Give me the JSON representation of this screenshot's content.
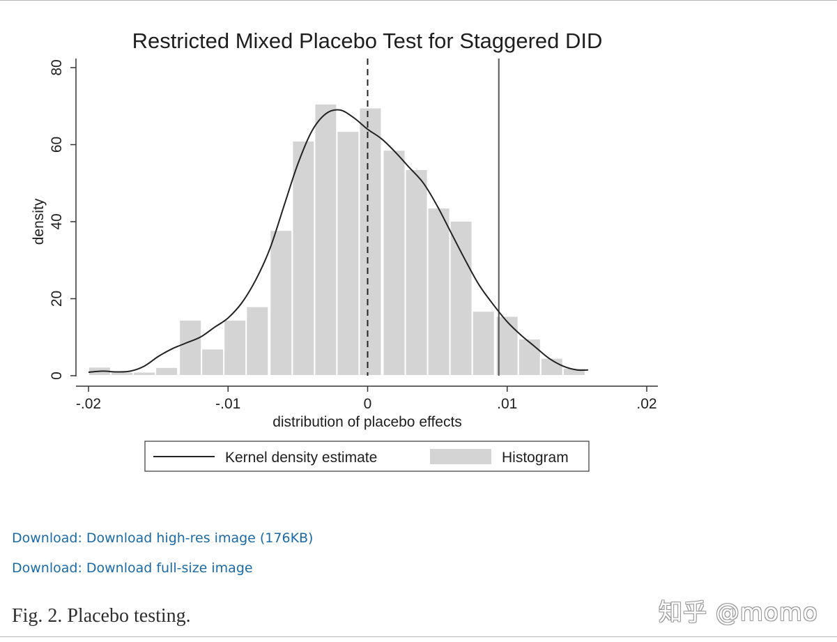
{
  "chart_data": {
    "type": "bar",
    "title": "Restricted Mixed Placebo Test for Staggered DID",
    "xlabel": "distribution of placebo effects",
    "ylabel": "density",
    "xlim": [
      -0.02,
      0.02
    ],
    "ylim": [
      0,
      80
    ],
    "x_ticks": [
      -0.02,
      -0.01,
      0,
      0.01,
      0.02
    ],
    "x_tick_labels": [
      "-.02",
      "-.01",
      "0",
      ".01",
      ".02"
    ],
    "y_ticks": [
      0,
      20,
      40,
      60,
      80
    ],
    "y_tick_labels": [
      "0",
      "20",
      "40",
      "60",
      "80"
    ],
    "grid": false,
    "legend_position": "bottom",
    "bin_width": 0.0016,
    "histogram": {
      "name": "Histogram",
      "color": "#d4d4d4",
      "bins": [
        {
          "x0": -0.02,
          "y": 2.3
        },
        {
          "x0": -0.0184,
          "y": 1.0
        },
        {
          "x0": -0.0168,
          "y": 1.0
        },
        {
          "x0": -0.0152,
          "y": 2.2
        },
        {
          "x0": -0.0135,
          "y": 14.5
        },
        {
          "x0": -0.0119,
          "y": 7.0
        },
        {
          "x0": -0.0103,
          "y": 14.5
        },
        {
          "x0": -0.0087,
          "y": 18.0
        },
        {
          "x0": -0.007,
          "y": 37.8
        },
        {
          "x0": -0.0054,
          "y": 61.0
        },
        {
          "x0": -0.0038,
          "y": 70.6
        },
        {
          "x0": -0.0022,
          "y": 63.5
        },
        {
          "x0": -0.0006,
          "y": 69.6
        },
        {
          "x0": 0.0011,
          "y": 58.6
        },
        {
          "x0": 0.0027,
          "y": 53.6
        },
        {
          "x0": 0.0043,
          "y": 43.6
        },
        {
          "x0": 0.0059,
          "y": 40.2
        },
        {
          "x0": 0.0075,
          "y": 16.8
        },
        {
          "x0": 0.0092,
          "y": 15.5
        },
        {
          "x0": 0.0108,
          "y": 9.6
        },
        {
          "x0": 0.0124,
          "y": 4.6
        },
        {
          "x0": 0.014,
          "y": 2.0
        }
      ]
    },
    "kde": {
      "name": "Kernel density estimate",
      "color": "#222222",
      "points": [
        [
          -0.02,
          0.9
        ],
        [
          -0.019,
          1.2
        ],
        [
          -0.018,
          1.0
        ],
        [
          -0.017,
          1.2
        ],
        [
          -0.016,
          2.5
        ],
        [
          -0.015,
          5.0
        ],
        [
          -0.014,
          7.0
        ],
        [
          -0.013,
          8.5
        ],
        [
          -0.012,
          10.0
        ],
        [
          -0.011,
          12.5
        ],
        [
          -0.01,
          15.0
        ],
        [
          -0.009,
          19.0
        ],
        [
          -0.008,
          25.0
        ],
        [
          -0.007,
          33.0
        ],
        [
          -0.006,
          44.0
        ],
        [
          -0.005,
          55.0
        ],
        [
          -0.004,
          63.5
        ],
        [
          -0.003,
          68.0
        ],
        [
          -0.002,
          69.0
        ],
        [
          -0.001,
          67.0
        ],
        [
          0.0,
          64.0
        ],
        [
          0.001,
          61.5
        ],
        [
          0.002,
          58.0
        ],
        [
          0.003,
          54.0
        ],
        [
          0.004,
          50.0
        ],
        [
          0.005,
          44.0
        ],
        [
          0.006,
          37.0
        ],
        [
          0.007,
          30.0
        ],
        [
          0.008,
          23.5
        ],
        [
          0.009,
          18.5
        ],
        [
          0.01,
          14.0
        ],
        [
          0.011,
          10.5
        ],
        [
          0.012,
          7.5
        ],
        [
          0.013,
          4.5
        ],
        [
          0.014,
          2.5
        ],
        [
          0.015,
          1.5
        ],
        [
          0.0158,
          1.5
        ]
      ]
    },
    "reference_lines": [
      {
        "x": 0,
        "style": "dashed",
        "color": "#222222"
      },
      {
        "x": 0.0094,
        "style": "solid",
        "color": "#555555"
      }
    ],
    "legend": {
      "kde_label": "Kernel density estimate",
      "hist_label": "Histogram"
    }
  },
  "links": {
    "download_highres": "Download: Download high-res image (176KB)",
    "download_full": "Download: Download full-size image"
  },
  "caption": "Fig. 2. Placebo testing.",
  "watermark": "知乎 @momo",
  "colors": {
    "link": "#1a6aa8",
    "bar": "#d4d4d4",
    "line": "#222222"
  }
}
